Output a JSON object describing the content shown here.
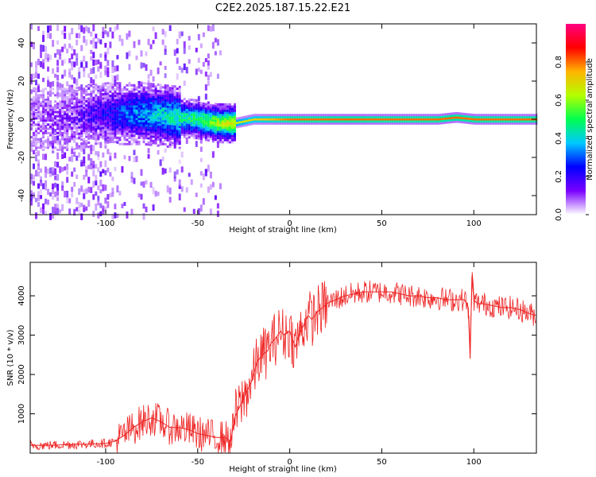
{
  "figure_title": "C2E2.2025.187.15.22.E21",
  "chart_data": [
    {
      "type": "heatmap",
      "xlabel": "Height of straight line (km)",
      "ylabel": "Frequency (Hz)",
      "xlim": [
        -141,
        134
      ],
      "ylim": [
        -50,
        50
      ],
      "xticks": [
        -100,
        -50,
        0,
        50,
        100
      ],
      "yticks": [
        -40,
        -20,
        0,
        20,
        40
      ],
      "colorbar": {
        "label": "Normalized spectral amplitude",
        "range": [
          0.0,
          1.0
        ],
        "ticks": [
          0.0,
          0.2,
          0.4,
          0.6,
          0.8
        ],
        "colormap": [
          "#ffffff",
          "#7a00ff",
          "#0000ff",
          "#00c8ff",
          "#00ff50",
          "#b4ff00",
          "#ffb400",
          "#ff0000",
          "#ff0080"
        ]
      },
      "line_profile": {
        "x": [
          -141,
          -120,
          -100,
          -90,
          -80,
          -70,
          -60,
          -50,
          -40,
          -30,
          -20,
          -10,
          0,
          20,
          40,
          60,
          80,
          90,
          100,
          134
        ],
        "peak_frequency": [
          0,
          0,
          3,
          3,
          3,
          2,
          1,
          0,
          -2,
          -2,
          0,
          0,
          0,
          0,
          0,
          0,
          0,
          1,
          0,
          0
        ],
        "peak_amplitude": [
          0.05,
          0.1,
          0.2,
          0.3,
          0.35,
          0.4,
          0.45,
          0.5,
          0.6,
          0.65,
          0.7,
          0.75,
          0.8,
          0.8,
          0.8,
          0.8,
          0.8,
          0.8,
          0.8,
          0.8
        ]
      }
    },
    {
      "type": "line",
      "xlabel": "Height of straight line (km)",
      "ylabel": "SNR (10 * v/v)",
      "xlim": [
        -141,
        134
      ],
      "ylim": [
        0,
        4850
      ],
      "xticks": [
        -100,
        -50,
        0,
        50,
        100
      ],
      "yticks": [
        1000,
        2000,
        3000,
        4000
      ],
      "series": [
        {
          "color": "#ee2222",
          "x": [
            -141,
            -130,
            -120,
            -110,
            -100,
            -95,
            -90,
            -85,
            -80,
            -75,
            -70,
            -65,
            -60,
            -55,
            -50,
            -45,
            -40,
            -35,
            -32,
            -30,
            -27,
            -25,
            -22,
            -20,
            -18,
            -15,
            -12,
            -10,
            -8,
            -5,
            -3,
            0,
            3,
            5,
            8,
            10,
            12,
            15,
            18,
            20,
            25,
            30,
            35,
            40,
            45,
            50,
            55,
            60,
            65,
            70,
            75,
            80,
            85,
            90,
            95,
            97,
            98,
            99,
            100,
            102,
            105,
            110,
            115,
            120,
            125,
            130,
            134
          ],
          "y": [
            200,
            200,
            220,
            230,
            250,
            300,
            450,
            650,
            800,
            900,
            800,
            650,
            650,
            600,
            500,
            450,
            400,
            400,
            300,
            900,
            1200,
            1400,
            1700,
            1900,
            2300,
            2500,
            2600,
            2800,
            2900,
            3100,
            3000,
            3100,
            2700,
            3000,
            3300,
            3500,
            3400,
            3600,
            3700,
            3800,
            3900,
            4000,
            4050,
            4100,
            4100,
            4100,
            4100,
            4050,
            4000,
            4000,
            3950,
            3950,
            3900,
            3900,
            3900,
            3700,
            2400,
            4500,
            3900,
            3800,
            3800,
            3750,
            3700,
            3700,
            3650,
            3550,
            3500
          ]
        }
      ]
    }
  ]
}
